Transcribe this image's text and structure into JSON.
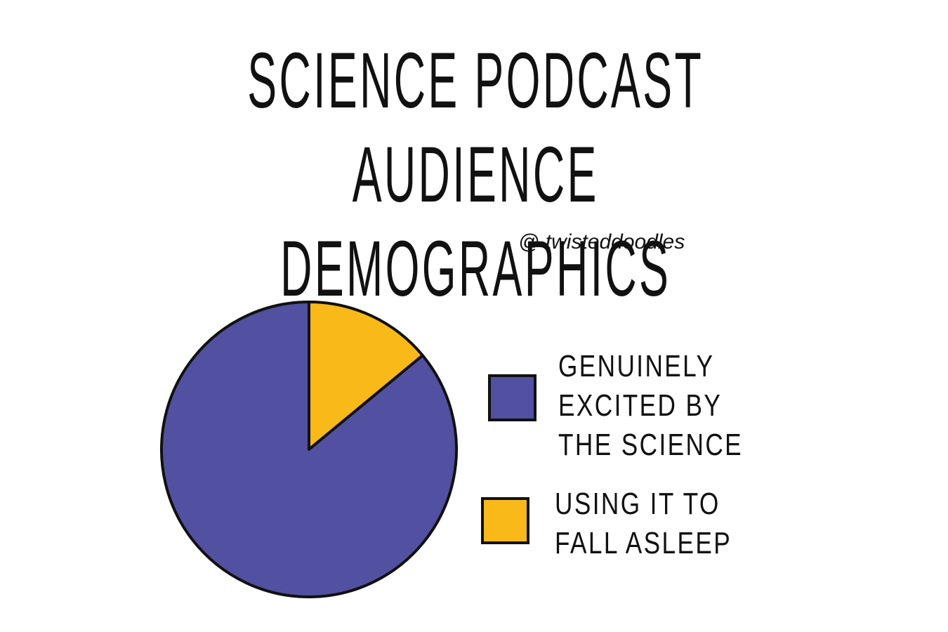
{
  "chart_data": {
    "type": "pie",
    "title": "SCIENCE PODCAST\nAUDIENCE DEMOGRAPHICS",
    "subtitle": "@ twisteddoodles",
    "categories": [
      "GENUINELY\nEXCITED BY\nTHE SCIENCE",
      "USING IT TO\nFALL ASLEEP"
    ],
    "values": [
      86,
      14
    ],
    "colors": [
      "#5250a0",
      "#f9b918"
    ]
  }
}
